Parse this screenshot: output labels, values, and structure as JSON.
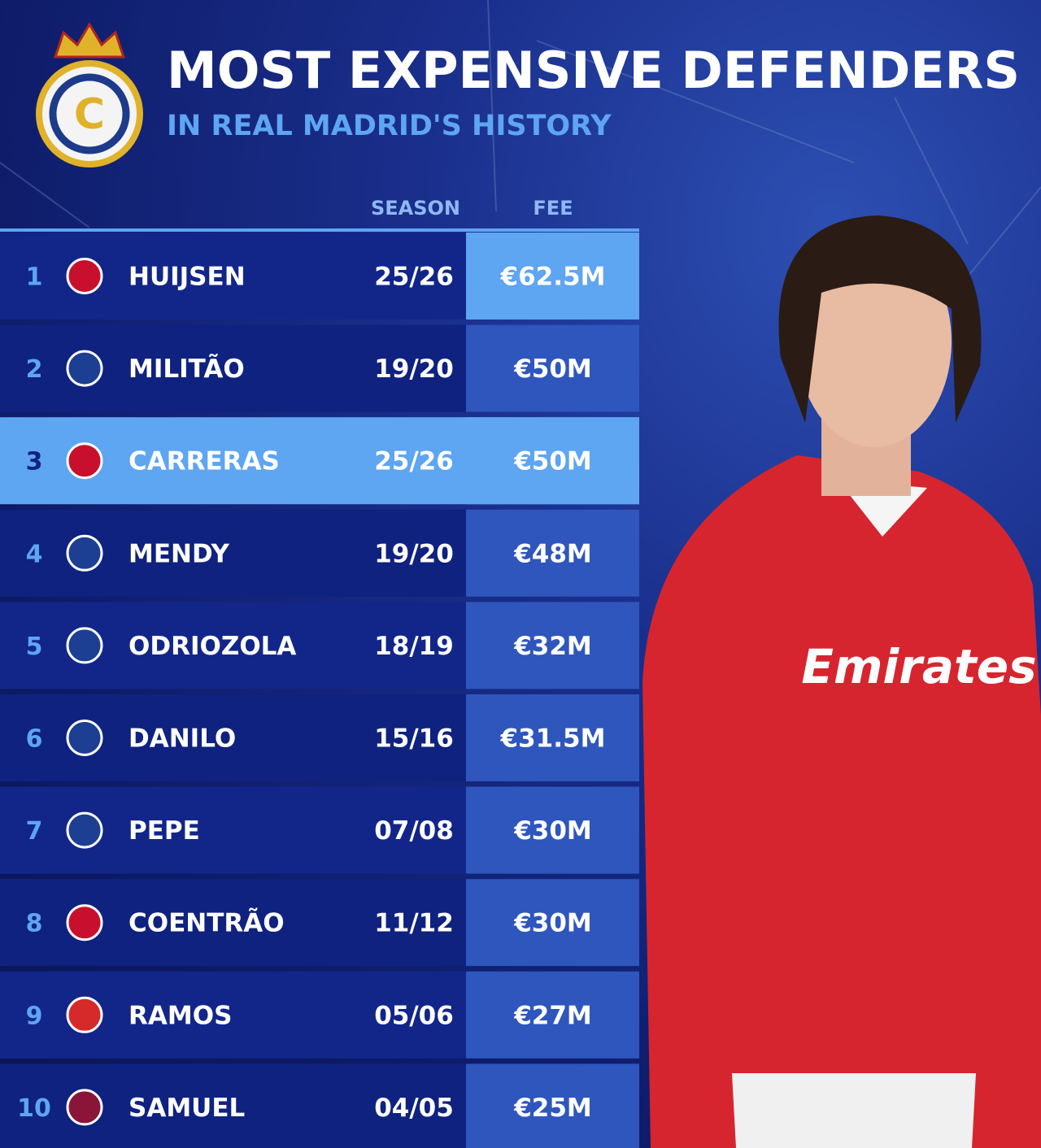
{
  "header": {
    "title": "MOST EXPENSIVE DEFENDERS",
    "subtitle": "IN REAL MADRID'S HISTORY"
  },
  "table": {
    "columns": [
      "SEASON",
      "FEE"
    ],
    "rows": [
      [
        "1",
        "HUIJSEN",
        "25/26",
        "€62.5M"
      ],
      [
        "2",
        "MILITÃO",
        "19/20",
        "€50M"
      ],
      [
        "3",
        "CARRERAS",
        "25/26",
        "€50M"
      ],
      [
        "4",
        "MENDY",
        "19/20",
        "€48M"
      ],
      [
        "5",
        "ODRIOZOLA",
        "18/19",
        "€32M"
      ],
      [
        "6",
        "DANILO",
        "15/16",
        "€31.5M"
      ],
      [
        "7",
        "PEPE",
        "07/08",
        "€30M"
      ],
      [
        "8",
        "COENTRÃO",
        "11/12",
        "€30M"
      ],
      [
        "9",
        "RAMOS",
        "05/06",
        "€27M"
      ],
      [
        "10",
        "SAMUEL",
        "04/05",
        "€25M"
      ]
    ]
  }
}
